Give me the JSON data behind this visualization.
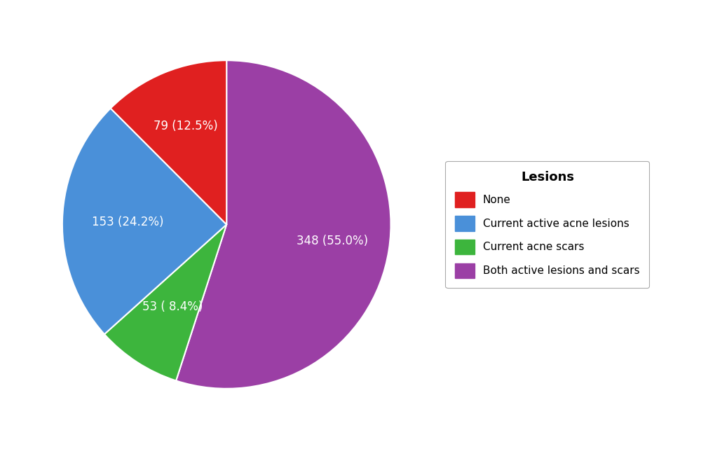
{
  "labels": [
    "None",
    "Current active acne lesions",
    "Current acne scars",
    "Both active lesions and scars"
  ],
  "values": [
    79,
    153,
    53,
    348
  ],
  "colors": [
    "#e02020",
    "#4a90d9",
    "#3db53d",
    "#9b3fa5"
  ],
  "legend_title": "Lesions",
  "background_color": "#ffffff",
  "label_color": "#ffffff",
  "label_fontsize": 12,
  "legend_fontsize": 11,
  "legend_title_fontsize": 13,
  "ordered_values": [
    348,
    53,
    153,
    79
  ],
  "ordered_colors": [
    "#9b3fa5",
    "#3db53d",
    "#4a90d9",
    "#e02020"
  ],
  "ordered_labels": [
    "348 (55.0%)",
    "53 ( 8.4%)",
    "153 (24.2%)",
    "79 (12.5%)"
  ],
  "label_radii": [
    0.65,
    0.6,
    0.6,
    0.65
  ]
}
